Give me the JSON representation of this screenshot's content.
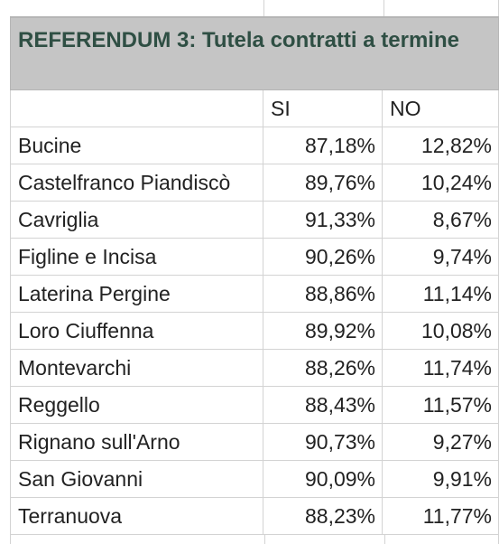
{
  "table": {
    "title": "REFERENDUM 3: Tutela contratti a termine",
    "columns": [
      "",
      "SI",
      "NO"
    ],
    "rows": [
      {
        "name": "Bucine",
        "si": "87,18%",
        "no": "12,82%"
      },
      {
        "name": "Castelfranco Piandiscò",
        "si": "89,76%",
        "no": "10,24%"
      },
      {
        "name": "Cavriglia",
        "si": "91,33%",
        "no": "8,67%"
      },
      {
        "name": "Figline e Incisa",
        "si": "90,26%",
        "no": "9,74%"
      },
      {
        "name": "Laterina Pergine",
        "si": "88,86%",
        "no": "11,14%"
      },
      {
        "name": "Loro Ciuffenna",
        "si": "89,92%",
        "no": "10,08%"
      },
      {
        "name": "Montevarchi",
        "si": "88,26%",
        "no": "11,74%"
      },
      {
        "name": "Reggello",
        "si": "88,43%",
        "no": "11,57%"
      },
      {
        "name": "Rignano sull'Arno",
        "si": "90,73%",
        "no": "9,27%"
      },
      {
        "name": "San Giovanni",
        "si": "90,09%",
        "no": "9,91%"
      },
      {
        "name": "Terranuova",
        "si": "88,23%",
        "no": "11,77%"
      }
    ]
  },
  "colors": {
    "title_background": "#c5c5c5",
    "title_text": "#2f4f44",
    "grid_line": "#d3d3d3"
  }
}
